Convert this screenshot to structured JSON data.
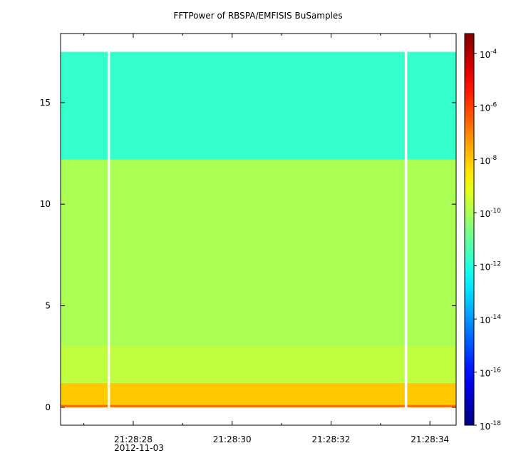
{
  "chart_data": {
    "type": "spectrogram",
    "title": "FFTPower of RBSPA/EMFISIS  BuSamples",
    "x_date_label": "2012-11-03",
    "xlim": [
      26.53,
      34.53
    ],
    "xticks": [
      {
        "value": 28,
        "label": "21:28:28"
      },
      {
        "value": 30,
        "label": "21:28:30"
      },
      {
        "value": 32,
        "label": "21:28:32"
      },
      {
        "value": 34,
        "label": "21:28:34"
      }
    ],
    "xminor": [
      27,
      29,
      31,
      33
    ],
    "ylim": [
      -0.88,
      18.4
    ],
    "yticks": [
      0,
      5,
      10,
      15
    ],
    "x_edges": [
      26.53,
      27.48,
      27.53,
      33.49,
      33.54,
      34.53
    ],
    "y_edges": [
      0,
      0.12,
      1.2,
      3,
      12.2,
      17.5
    ],
    "z": [
      [
        2e-07,
        null,
        2e-07,
        null,
        2e-07
      ],
      [
        1e-08,
        null,
        1e-08,
        null,
        1e-08
      ],
      [
        2e-10,
        null,
        2e-10,
        null,
        2e-10
      ],
      [
        1e-10,
        null,
        1e-10,
        null,
        1e-10
      ],
      [
        2e-12,
        null,
        2e-12,
        null,
        2e-12
      ]
    ],
    "zlog": true,
    "zlim": [
      1e-18,
      0.00056
    ],
    "zticks": [
      {
        "value": 0.0001,
        "label": "10",
        "exponent": "-4"
      },
      {
        "value": 1e-06,
        "label": "10",
        "exponent": "-6"
      },
      {
        "value": 1e-08,
        "label": "10",
        "exponent": "-8"
      },
      {
        "value": 1e-10,
        "label": "10",
        "exponent": "-10"
      },
      {
        "value": 1e-12,
        "label": "10",
        "exponent": "-12"
      },
      {
        "value": 1e-14,
        "label": "10",
        "exponent": "-14"
      },
      {
        "value": 1e-16,
        "label": "10",
        "exponent": "-16"
      },
      {
        "value": 1e-18,
        "label": "10",
        "exponent": "-18"
      }
    ]
  }
}
